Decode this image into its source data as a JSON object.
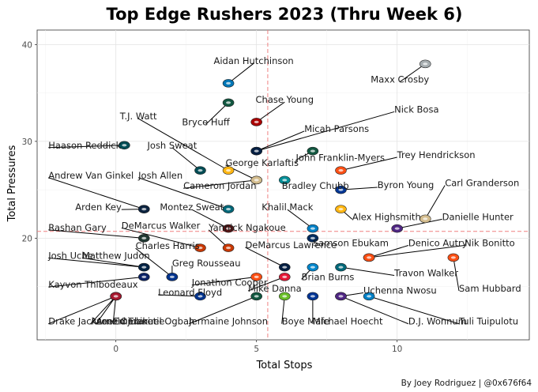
{
  "chart_data": {
    "type": "scatter",
    "title": "Top Edge Rushers 2023 (Thru Week 6)",
    "xlabel": "Total Stops",
    "ylabel": "Total Pressures",
    "caption": "By Joey Rodriguez | @0x676f64",
    "xlim": [
      -2.8,
      14.7
    ],
    "ylim": [
      9.5,
      41.5
    ],
    "x_ticks": [
      0,
      5,
      10
    ],
    "y_ticks": [
      20,
      30,
      40
    ],
    "grid": true,
    "reference_lines": {
      "x_mean": 5.4,
      "y_mean": 20.7,
      "color": "#f08080"
    },
    "points": [
      {
        "name": "Maxx Crosby",
        "x": 11,
        "y": 38,
        "color": "#a5acaf",
        "lx": 10.1,
        "ly": 36.4,
        "anchor": "middle"
      },
      {
        "name": "Aidan Hutchinson",
        "x": 4,
        "y": 36,
        "color": "#0076b6",
        "lx": 4.9,
        "ly": 38.3,
        "anchor": "middle"
      },
      {
        "name": "Bryce Huff",
        "x": 4,
        "y": 34,
        "color": "#125740",
        "lx": 3.2,
        "ly": 32.0,
        "anchor": "middle"
      },
      {
        "name": "Chase Young",
        "x": 5,
        "y": 32,
        "color": "#aa0000",
        "lx": 6.0,
        "ly": 34.3,
        "anchor": "middle"
      },
      {
        "name": "Nick Bosa",
        "x": 5,
        "y": 29,
        "color": "#aa0000",
        "lx": 9.9,
        "ly": 33.3,
        "anchor": "start"
      },
      {
        "name": "T.J. Watt",
        "x": 4,
        "y": 27,
        "color": "#ffb612",
        "lx": 0.8,
        "ly": 32.6,
        "anchor": "middle"
      },
      {
        "name": "Micah Parsons",
        "x": 5,
        "y": 29,
        "color": "#041e42",
        "lx": 6.7,
        "ly": 31.3,
        "anchor": "start"
      },
      {
        "name": "Haason Reddick",
        "x": 0.3,
        "y": 29.6,
        "color": "#004c54",
        "lx": -2.4,
        "ly": 29.6,
        "anchor": "start"
      },
      {
        "name": "Josh Sweat",
        "x": 3,
        "y": 27,
        "color": "#004c54",
        "lx": 2.0,
        "ly": 29.6,
        "anchor": "middle"
      },
      {
        "name": "Trey Hendrickson",
        "x": 8,
        "y": 27,
        "color": "#fb4f14",
        "lx": 10.0,
        "ly": 28.6,
        "anchor": "start"
      },
      {
        "name": "John Franklin-Myers",
        "x": 7,
        "y": 29,
        "color": "#125740",
        "lx": 6.4,
        "ly": 28.3,
        "anchor": "start"
      },
      {
        "name": "George Karlaftis",
        "x": 5,
        "y": 26,
        "color": "#e31837",
        "lx": 3.9,
        "ly": 27.8,
        "anchor": "start"
      },
      {
        "name": "Andrew Van Ginkel",
        "x": 1,
        "y": 23,
        "color": "#008e97",
        "lx": -2.4,
        "ly": 26.5,
        "anchor": "start"
      },
      {
        "name": "Josh Allen",
        "x": 4,
        "y": 23,
        "color": "#006778",
        "lx": 0.8,
        "ly": 26.5,
        "anchor": "start"
      },
      {
        "name": "Cameron Jordan",
        "x": 5,
        "y": 26,
        "color": "#d3bc8d",
        "lx": 2.4,
        "ly": 25.4,
        "anchor": "start"
      },
      {
        "name": "Bradley Chubb",
        "x": 6,
        "y": 26,
        "color": "#008e97",
        "lx": 5.9,
        "ly": 25.4,
        "anchor": "start"
      },
      {
        "name": "Byron Young",
        "x": 8,
        "y": 25,
        "color": "#003594",
        "lx": 9.3,
        "ly": 25.5,
        "anchor": "start"
      },
      {
        "name": "Carl Granderson",
        "x": 11,
        "y": 22,
        "color": "#d3bc8d",
        "lx": 11.7,
        "ly": 25.7,
        "anchor": "start"
      },
      {
        "name": "Arden Key",
        "x": 1,
        "y": 23,
        "color": "#0c2340",
        "lx": 0.2,
        "ly": 23.2,
        "anchor": "end"
      },
      {
        "name": "Montez Sweat",
        "x": 4,
        "y": 21,
        "color": "#5a1414",
        "lx": 2.7,
        "ly": 23.2,
        "anchor": "middle"
      },
      {
        "name": "Khalil Mack",
        "x": 7,
        "y": 21,
        "color": "#0080c6",
        "lx": 6.1,
        "ly": 23.2,
        "anchor": "middle"
      },
      {
        "name": "Alex Highsmith",
        "x": 8,
        "y": 23,
        "color": "#ffb612",
        "lx": 8.4,
        "ly": 22.2,
        "anchor": "start"
      },
      {
        "name": "Danielle Hunter",
        "x": 10,
        "y": 21,
        "color": "#4f2683",
        "lx": 11.6,
        "ly": 22.2,
        "anchor": "start"
      },
      {
        "name": "Rashan Gary",
        "x": 1,
        "y": 20,
        "color": "#203731",
        "lx": -2.4,
        "ly": 21.1,
        "anchor": "start"
      },
      {
        "name": "DeMarcus Walker",
        "x": 3,
        "y": 19,
        "color": "#c83803",
        "lx": 0.2,
        "ly": 21.3,
        "anchor": "start"
      },
      {
        "name": "Yannick Ngakoue",
        "x": 4,
        "y": 19,
        "color": "#c83803",
        "lx": 3.3,
        "ly": 21.1,
        "anchor": "start"
      },
      {
        "name": "Charles Harris",
        "x": 2,
        "y": 16,
        "color": "#0076b6",
        "lx": 0.7,
        "ly": 19.2,
        "anchor": "start"
      },
      {
        "name": "DeMarcus Lawrence",
        "x": 6,
        "y": 17,
        "color": "#041e42",
        "lx": 4.6,
        "ly": 19.3,
        "anchor": "start"
      },
      {
        "name": "Samson Ebukam",
        "x": 7,
        "y": 20,
        "color": "#002c5f",
        "lx": 7.0,
        "ly": 19.5,
        "anchor": "start"
      },
      {
        "name": "Denico Autry",
        "x": 9,
        "y": 18,
        "color": "#4b92db",
        "lx": 10.4,
        "ly": 19.5,
        "anchor": "start"
      },
      {
        "name": "Nik Bonitto",
        "x": 9,
        "y": 18,
        "color": "#fb4f14",
        "lx": 12.4,
        "ly": 19.5,
        "anchor": "start"
      },
      {
        "name": "Josh Uche",
        "x": 1,
        "y": 17,
        "color": "#002244",
        "lx": -2.4,
        "ly": 18.2,
        "anchor": "start"
      },
      {
        "name": "Matthew Judon",
        "x": 1,
        "y": 17,
        "color": "#002244",
        "lx": -1.2,
        "ly": 18.2,
        "anchor": "start"
      },
      {
        "name": "Greg Rousseau",
        "x": 2,
        "y": 16,
        "color": "#00338d",
        "lx": 2.0,
        "ly": 17.4,
        "anchor": "start"
      },
      {
        "name": "Travon Walker",
        "x": 8,
        "y": 17,
        "color": "#006778",
        "lx": 9.9,
        "ly": 16.4,
        "anchor": "start"
      },
      {
        "name": "Brian Burns",
        "x": 7,
        "y": 17,
        "color": "#0085ca",
        "lx": 6.6,
        "ly": 16.0,
        "anchor": "start"
      },
      {
        "name": "Kayvon Thibodeaux",
        "x": 1,
        "y": 16,
        "color": "#0b2265",
        "lx": -2.4,
        "ly": 15.2,
        "anchor": "start"
      },
      {
        "name": "Jonathon Cooper",
        "x": 5,
        "y": 16,
        "color": "#fb4f14",
        "lx": 2.7,
        "ly": 15.4,
        "anchor": "start"
      },
      {
        "name": "Mike Danna",
        "x": 6,
        "y": 16,
        "color": "#e31837",
        "lx": 4.7,
        "ly": 14.8,
        "anchor": "start"
      },
      {
        "name": "Sam Hubbard",
        "x": 12,
        "y": 18,
        "color": "#fb4f14",
        "lx": 12.2,
        "ly": 14.8,
        "anchor": "start"
      },
      {
        "name": "Leonard Floyd",
        "x": 3,
        "y": 14,
        "color": "#00338d",
        "lx": 1.5,
        "ly": 14.4,
        "anchor": "start"
      },
      {
        "name": "Uchenna Nwosu",
        "x": 8,
        "y": 14,
        "color": "#69be28",
        "lx": 8.8,
        "ly": 14.6,
        "anchor": "start"
      },
      {
        "name": "Drake Jackson",
        "x": 0,
        "y": 14,
        "color": "#aa0000",
        "lx": -2.4,
        "ly": 11.4,
        "anchor": "start"
      },
      {
        "name": "Azeez Ojulari",
        "x": 0,
        "y": 14,
        "color": "#a71930",
        "lx": -0.9,
        "ly": 11.4,
        "anchor": "start"
      },
      {
        "name": "Emmanuel Ogbah",
        "x": 0,
        "y": 14,
        "color": "#008e97",
        "lx": -0.1,
        "ly": 11.4,
        "anchor": "start"
      },
      {
        "name": "Jermaine Johnson",
        "x": 5,
        "y": 14,
        "color": "#125740",
        "lx": 2.6,
        "ly": 11.4,
        "anchor": "start"
      },
      {
        "name": "Boye Mafe",
        "x": 6,
        "y": 14,
        "color": "#69be28",
        "lx": 5.9,
        "ly": 11.4,
        "anchor": "start"
      },
      {
        "name": "Michael Hoecht",
        "x": 7,
        "y": 14,
        "color": "#003594",
        "lx": 7.0,
        "ly": 11.4,
        "anchor": "start"
      },
      {
        "name": "D.J. Wonnum",
        "x": 8,
        "y": 14,
        "color": "#4f2683",
        "lx": 10.4,
        "ly": 11.4,
        "anchor": "start"
      },
      {
        "name": "Tuli Tuipulotu",
        "x": 9,
        "y": 14,
        "color": "#0080c6",
        "lx": 12.2,
        "ly": 11.4,
        "anchor": "start"
      },
      {
        "name": "Arnold Ebiketie",
        "x": 0,
        "y": 14,
        "color": "#a71930",
        "lx": -0.7,
        "ly": 11.4,
        "anchor": "start"
      }
    ]
  }
}
